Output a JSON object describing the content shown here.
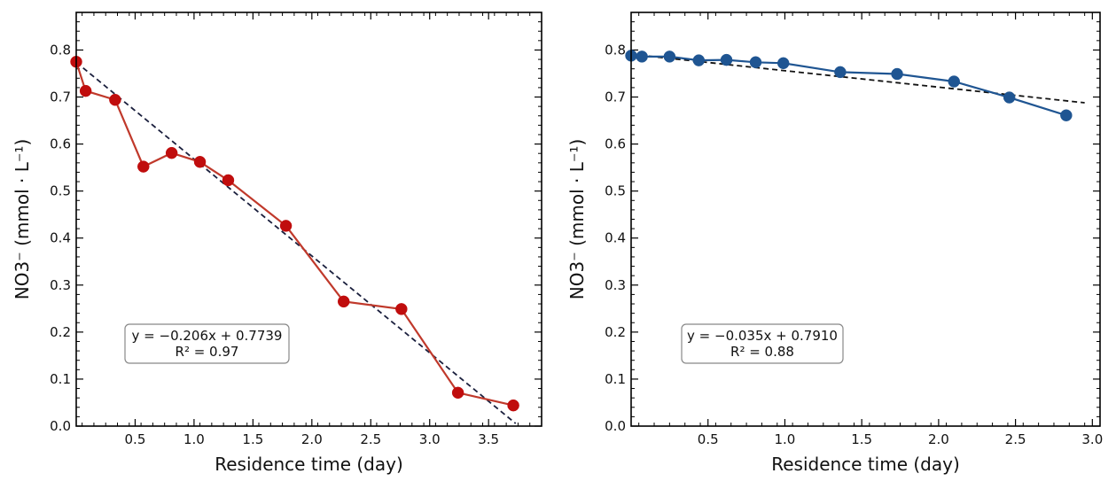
{
  "chart_data": [
    {
      "type": "scatter",
      "xlabel": "Residence time (day)",
      "ylabel": "NO3⁻ (mmol · L⁻¹)",
      "xlim": [
        0,
        3.95
      ],
      "ylim": [
        0,
        0.88
      ],
      "xticks": [
        "0.5",
        "1.0",
        "1.5",
        "2.0",
        "2.5",
        "3.0",
        "3.5"
      ],
      "yticks": [
        "0.0",
        "0.1",
        "0.2",
        "0.3",
        "0.4",
        "0.5",
        "0.6",
        "0.7",
        "0.8"
      ],
      "grid": false,
      "colors": {
        "series": "#c00d0d",
        "line": "#c0392b",
        "fit": "#1a1f3d"
      },
      "series": [
        {
          "x": [
            0.0,
            0.08,
            0.33,
            0.57,
            0.81,
            1.05,
            1.29,
            1.78,
            2.27,
            2.76,
            3.24,
            3.71
          ],
          "y": [
            0.775,
            0.713,
            0.694,
            0.552,
            0.581,
            0.562,
            0.523,
            0.426,
            0.265,
            0.249,
            0.071,
            0.044
          ]
        }
      ],
      "fit": {
        "slope": -0.206,
        "intercept": 0.7739,
        "x_range": [
          0.0,
          3.73
        ]
      },
      "annotation": {
        "equation": "y = −0.206x + 0.7739",
        "r2": "R² = 0.97"
      }
    },
    {
      "type": "scatter",
      "xlabel": "Residence time (day)",
      "ylabel": "NO3⁻ (mmol · L⁻¹)",
      "xlim": [
        0,
        3.05
      ],
      "ylim": [
        0,
        0.88
      ],
      "xticks": [
        "0.5",
        "1.0",
        "1.5",
        "2.0",
        "2.5",
        "3.0"
      ],
      "yticks": [
        "0.0",
        "0.1",
        "0.2",
        "0.3",
        "0.4",
        "0.5",
        "0.6",
        "0.7",
        "0.8"
      ],
      "grid": false,
      "colors": {
        "series": "#1f5592",
        "line": "#1f5592",
        "fit": "#111111"
      },
      "series": [
        {
          "x": [
            0.0,
            0.07,
            0.25,
            0.44,
            0.62,
            0.81,
            0.99,
            1.36,
            1.73,
            2.1,
            2.46,
            2.83
          ],
          "y": [
            0.788,
            0.786,
            0.786,
            0.778,
            0.779,
            0.774,
            0.772,
            0.753,
            0.749,
            0.733,
            0.699,
            0.661
          ]
        }
      ],
      "fit": {
        "slope": -0.035,
        "intercept": 0.791,
        "x_range": [
          0.0,
          2.95
        ]
      },
      "annotation": {
        "equation": "y = −0.035x + 0.7910",
        "r2": "R² = 0.88"
      }
    }
  ]
}
